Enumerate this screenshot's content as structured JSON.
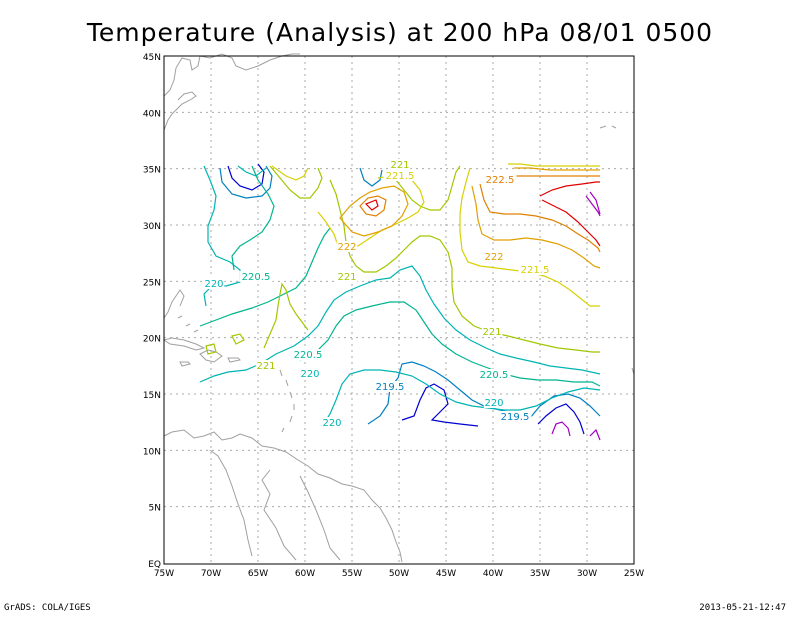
{
  "title": "Temperature (Analysis) at 200 hPa 08/01 0500",
  "footer": {
    "left": "GrADS: COLA/IGES",
    "right": "2013-05-21-12:47"
  },
  "axes": {
    "lon_ticks": [
      "75W",
      "70W",
      "65W",
      "60W",
      "55W",
      "50W",
      "45W",
      "40W",
      "35W",
      "30W",
      "25W"
    ],
    "lat_ticks": [
      "45N",
      "40N",
      "35N",
      "30N",
      "25N",
      "20N",
      "15N",
      "10N",
      "5N",
      "EQ"
    ]
  },
  "contour_labels": [
    {
      "text": "221",
      "color": "#a0c800"
    },
    {
      "text": "221.5",
      "color": "#d8d000"
    },
    {
      "text": "222.5",
      "color": "#e08000"
    },
    {
      "text": "222",
      "color": "#e0a000"
    },
    {
      "text": "222",
      "color": "#e0a000"
    },
    {
      "text": "221.5",
      "color": "#d8d000"
    },
    {
      "text": "221",
      "color": "#a0c800"
    },
    {
      "text": "220",
      "color": "#00b4b4"
    },
    {
      "text": "220.5",
      "color": "#00b490"
    },
    {
      "text": "221",
      "color": "#a0c800"
    },
    {
      "text": "220.5",
      "color": "#00b490"
    },
    {
      "text": "220",
      "color": "#00b4b4"
    },
    {
      "text": "221",
      "color": "#a0c800"
    },
    {
      "text": "219.5",
      "color": "#0080c0"
    },
    {
      "text": "220.5",
      "color": "#00b490"
    },
    {
      "text": "220",
      "color": "#00b4b4"
    },
    {
      "text": "219.5",
      "color": "#0080c0"
    },
    {
      "text": "220",
      "color": "#00b4b4"
    }
  ],
  "colors": {
    "frame": "#000000",
    "grid": "#aaaaaa",
    "coast": "#a0a0a0",
    "c219": "#0000d0",
    "c219_5": "#0080c0",
    "c220": "#00b4b4",
    "c220_5": "#00b490",
    "c221": "#a0c800",
    "c221_5": "#d8d000",
    "c222": "#e0a000",
    "c222_5": "#e08000",
    "c223": "#e00000",
    "c223_5": "#a000c0"
  }
}
